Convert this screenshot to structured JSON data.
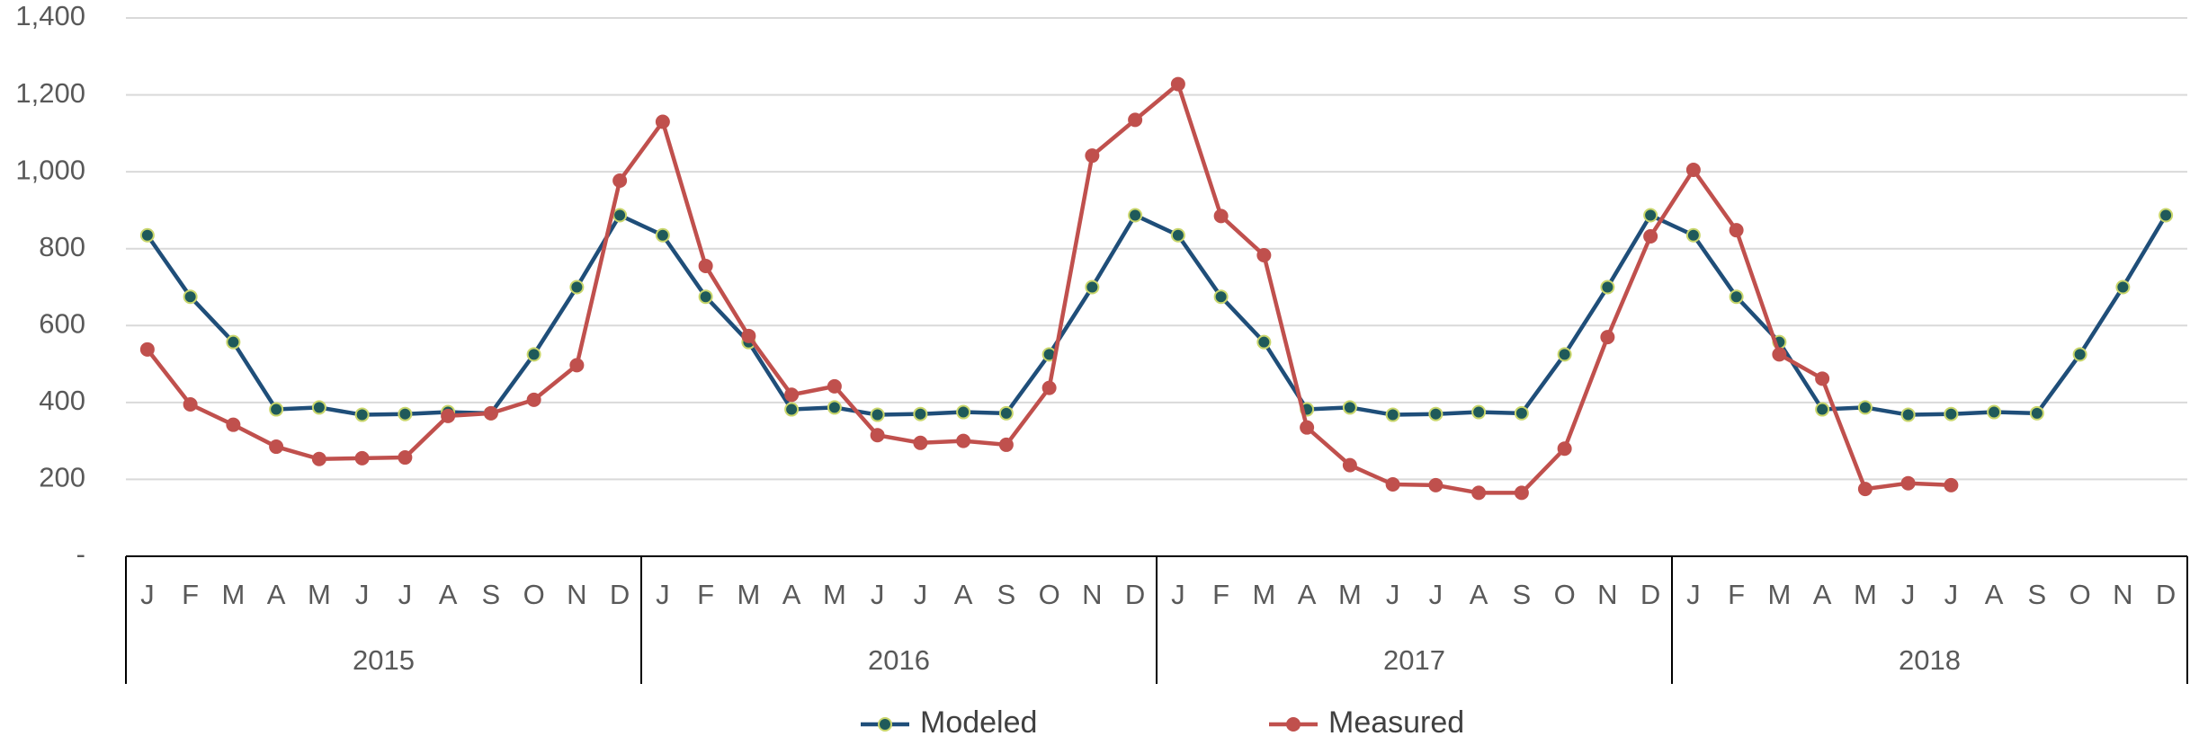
{
  "chart_data": {
    "type": "line",
    "categories": [
      "J",
      "F",
      "M",
      "A",
      "M",
      "J",
      "J",
      "A",
      "S",
      "O",
      "N",
      "D",
      "J",
      "F",
      "M",
      "A",
      "M",
      "J",
      "J",
      "A",
      "S",
      "O",
      "N",
      "D",
      "J",
      "F",
      "M",
      "A",
      "M",
      "J",
      "J",
      "A",
      "S",
      "O",
      "N",
      "D",
      "J",
      "F",
      "M",
      "A",
      "M",
      "J",
      "J",
      "A",
      "S",
      "O",
      "N",
      "D"
    ],
    "category_groups": [
      "2015",
      "2016",
      "2017",
      "2018"
    ],
    "series": [
      {
        "name": "Modeled",
        "color": "#1f4e79",
        "marker_color": "#1f5a5a",
        "marker_edge": "#c9d66b",
        "values": [
          835,
          675,
          557,
          382,
          387,
          368,
          370,
          375,
          372,
          525,
          700,
          887,
          835,
          675,
          557,
          382,
          387,
          368,
          370,
          375,
          372,
          525,
          700,
          887,
          835,
          675,
          557,
          382,
          387,
          368,
          370,
          375,
          372,
          525,
          700,
          887,
          835,
          675,
          557,
          382,
          387,
          368,
          370,
          375,
          372,
          525,
          700,
          887
        ]
      },
      {
        "name": "Measured",
        "color": "#c0504d",
        "marker_color": "#c0504d",
        "marker_edge": "#c0504d",
        "values": [
          538,
          395,
          342,
          285,
          253,
          255,
          257,
          365,
          372,
          407,
          497,
          977,
          1130,
          755,
          573,
          420,
          442,
          315,
          295,
          300,
          290,
          438,
          1042,
          1135,
          1228,
          885,
          783,
          335,
          237,
          187,
          185,
          165,
          165,
          280,
          570,
          832,
          1005,
          848,
          525,
          462,
          175,
          190,
          185,
          null,
          null,
          null,
          null,
          null
        ]
      }
    ],
    "ylim": [
      0,
      1400
    ],
    "yticks": [
      {
        "value": 0,
        "label": "-"
      },
      200,
      400,
      600,
      800,
      {
        "value": 1000,
        "label": "1,000"
      },
      {
        "value": 1200,
        "label": "1,200"
      },
      {
        "value": 1400,
        "label": "1,400"
      }
    ],
    "grid": true,
    "legend": "bottom"
  }
}
